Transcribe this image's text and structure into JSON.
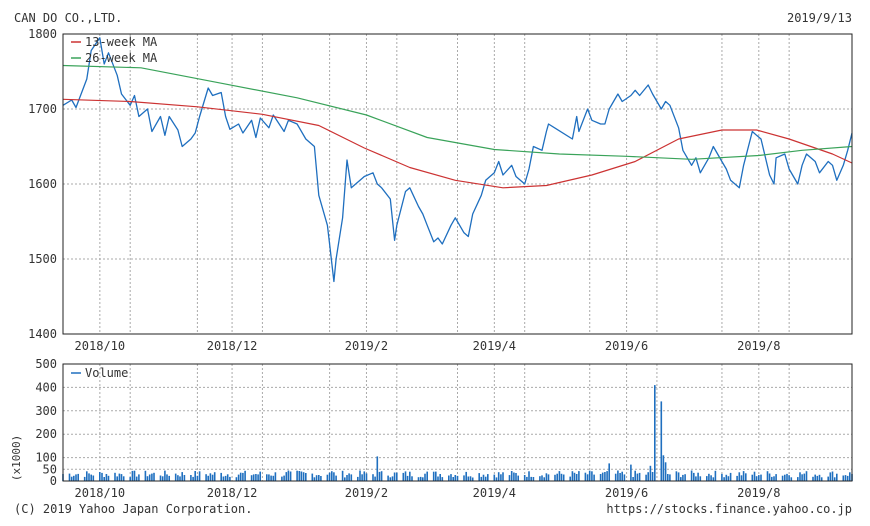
{
  "header": {
    "company": "CAN DO CO.,LTD.",
    "date": "2019/9/13"
  },
  "footer": {
    "copyright": "(C) 2019 Yahoo Japan Corporation.",
    "url": "https://stocks.finance.yahoo.co.jp"
  },
  "colors": {
    "price": "#1f6fbf",
    "ma13": "#cc3333",
    "ma26": "#3aa35a",
    "volume": "#1f6fbf",
    "grid": "#aaaaaa",
    "frame": "#222222"
  },
  "chart_data": [
    {
      "type": "line",
      "x_axis": "date",
      "x_range": [
        "2018-09-14",
        "2019-09-13"
      ],
      "x_tick_labels": [
        {
          "date": "2018-10-01",
          "label": "2018/10"
        },
        {
          "date": "2018-12-01",
          "label": "2018/12"
        },
        {
          "date": "2019-02-01",
          "label": "2019/2"
        },
        {
          "date": "2019-04-01",
          "label": "2019/4"
        },
        {
          "date": "2019-06-01",
          "label": "2019/6"
        },
        {
          "date": "2019-08-01",
          "label": "2019/8"
        }
      ],
      "ylim": [
        1400,
        1800
      ],
      "y_ticks": [
        1400,
        1500,
        1600,
        1700,
        1800
      ],
      "grid": true,
      "legend_position": "top-left",
      "legend": [
        "13-week MA",
        "26-week MA"
      ],
      "series": [
        {
          "key": "price",
          "points": [
            [
              "2018-09-14",
              1705
            ],
            [
              "2018-09-18",
              1712
            ],
            [
              "2018-09-20",
              1702
            ],
            [
              "2018-09-25",
              1740
            ],
            [
              "2018-09-27",
              1778
            ],
            [
              "2018-10-01",
              1795
            ],
            [
              "2018-10-03",
              1760
            ],
            [
              "2018-10-05",
              1775
            ],
            [
              "2018-10-09",
              1745
            ],
            [
              "2018-10-11",
              1720
            ],
            [
              "2018-10-15",
              1705
            ],
            [
              "2018-10-17",
              1718
            ],
            [
              "2018-10-19",
              1690
            ],
            [
              "2018-10-23",
              1700
            ],
            [
              "2018-10-25",
              1670
            ],
            [
              "2018-10-29",
              1690
            ],
            [
              "2018-10-31",
              1665
            ],
            [
              "2018-11-02",
              1690
            ],
            [
              "2018-11-06",
              1672
            ],
            [
              "2018-11-08",
              1650
            ],
            [
              "2018-11-12",
              1660
            ],
            [
              "2018-11-14",
              1668
            ],
            [
              "2018-11-16",
              1690
            ],
            [
              "2018-11-20",
              1728
            ],
            [
              "2018-11-22",
              1718
            ],
            [
              "2018-11-26",
              1722
            ],
            [
              "2018-11-28",
              1690
            ],
            [
              "2018-11-30",
              1673
            ],
            [
              "2018-12-04",
              1680
            ],
            [
              "2018-12-06",
              1668
            ],
            [
              "2018-12-10",
              1685
            ],
            [
              "2018-12-12",
              1662
            ],
            [
              "2018-12-14",
              1688
            ],
            [
              "2018-12-18",
              1675
            ],
            [
              "2018-12-20",
              1692
            ],
            [
              "2018-12-25",
              1670
            ],
            [
              "2018-12-27",
              1685
            ],
            [
              "2018-12-31",
              1680
            ],
            [
              "2019-01-04",
              1660
            ],
            [
              "2019-01-08",
              1650
            ],
            [
              "2019-01-10",
              1585
            ],
            [
              "2019-01-14",
              1545
            ],
            [
              "2019-01-15",
              1520
            ],
            [
              "2019-01-17",
              1470
            ],
            [
              "2019-01-18",
              1500
            ],
            [
              "2019-01-21",
              1555
            ],
            [
              "2019-01-23",
              1632
            ],
            [
              "2019-01-25",
              1595
            ],
            [
              "2019-01-29",
              1605
            ],
            [
              "2019-01-31",
              1610
            ],
            [
              "2019-02-04",
              1615
            ],
            [
              "2019-02-06",
              1600
            ],
            [
              "2019-02-08",
              1595
            ],
            [
              "2019-02-12",
              1580
            ],
            [
              "2019-02-14",
              1525
            ],
            [
              "2019-02-15",
              1545
            ],
            [
              "2019-02-19",
              1590
            ],
            [
              "2019-02-21",
              1595
            ],
            [
              "2019-02-25",
              1570
            ],
            [
              "2019-02-27",
              1560
            ],
            [
              "2019-03-01",
              1545
            ],
            [
              "2019-03-04",
              1523
            ],
            [
              "2019-03-06",
              1528
            ],
            [
              "2019-03-08",
              1520
            ],
            [
              "2019-03-12",
              1545
            ],
            [
              "2019-03-14",
              1555
            ],
            [
              "2019-03-18",
              1535
            ],
            [
              "2019-03-20",
              1530
            ],
            [
              "2019-03-22",
              1560
            ],
            [
              "2019-03-26",
              1585
            ],
            [
              "2019-03-28",
              1605
            ],
            [
              "2019-04-01",
              1615
            ],
            [
              "2019-04-03",
              1630
            ],
            [
              "2019-04-05",
              1612
            ],
            [
              "2019-04-09",
              1625
            ],
            [
              "2019-04-11",
              1610
            ],
            [
              "2019-04-15",
              1600
            ],
            [
              "2019-04-17",
              1620
            ],
            [
              "2019-04-19",
              1650
            ],
            [
              "2019-04-23",
              1645
            ],
            [
              "2019-04-25",
              1670
            ],
            [
              "2019-04-26",
              1680
            ],
            [
              "2019-05-07",
              1660
            ],
            [
              "2019-05-09",
              1690
            ],
            [
              "2019-05-10",
              1670
            ],
            [
              "2019-05-14",
              1700
            ],
            [
              "2019-05-16",
              1685
            ],
            [
              "2019-05-20",
              1680
            ],
            [
              "2019-05-22",
              1680
            ],
            [
              "2019-05-24",
              1700
            ],
            [
              "2019-05-28",
              1720
            ],
            [
              "2019-05-30",
              1710
            ],
            [
              "2019-06-03",
              1718
            ],
            [
              "2019-06-05",
              1725
            ],
            [
              "2019-06-07",
              1718
            ],
            [
              "2019-06-11",
              1732
            ],
            [
              "2019-06-13",
              1720
            ],
            [
              "2019-06-17",
              1700
            ],
            [
              "2019-06-19",
              1710
            ],
            [
              "2019-06-21",
              1705
            ],
            [
              "2019-06-25",
              1675
            ],
            [
              "2019-06-27",
              1645
            ],
            [
              "2019-07-01",
              1625
            ],
            [
              "2019-07-03",
              1635
            ],
            [
              "2019-07-05",
              1615
            ],
            [
              "2019-07-09",
              1635
            ],
            [
              "2019-07-11",
              1650
            ],
            [
              "2019-07-15",
              1630
            ],
            [
              "2019-07-17",
              1620
            ],
            [
              "2019-07-19",
              1605
            ],
            [
              "2019-07-23",
              1595
            ],
            [
              "2019-07-25",
              1625
            ],
            [
              "2019-07-29",
              1670
            ],
            [
              "2019-07-31",
              1665
            ],
            [
              "2019-08-02",
              1660
            ],
            [
              "2019-08-06",
              1612
            ],
            [
              "2019-08-08",
              1600
            ],
            [
              "2019-08-09",
              1635
            ],
            [
              "2019-08-13",
              1640
            ],
            [
              "2019-08-15",
              1620
            ],
            [
              "2019-08-19",
              1600
            ],
            [
              "2019-08-21",
              1625
            ],
            [
              "2019-08-23",
              1640
            ],
            [
              "2019-08-27",
              1630
            ],
            [
              "2019-08-29",
              1615
            ],
            [
              "2019-09-02",
              1630
            ],
            [
              "2019-09-04",
              1625
            ],
            [
              "2019-09-06",
              1605
            ],
            [
              "2019-09-09",
              1625
            ],
            [
              "2019-09-11",
              1645
            ],
            [
              "2019-09-13",
              1668
            ]
          ]
        },
        {
          "key": "ma13",
          "name": "13-week MA",
          "points": [
            [
              "2018-09-14",
              1713
            ],
            [
              "2018-10-15",
              1710
            ],
            [
              "2018-11-15",
              1703
            ],
            [
              "2018-12-15",
              1693
            ],
            [
              "2019-01-10",
              1678
            ],
            [
              "2019-01-31",
              1648
            ],
            [
              "2019-02-21",
              1622
            ],
            [
              "2019-03-14",
              1605
            ],
            [
              "2019-04-05",
              1595
            ],
            [
              "2019-04-25",
              1598
            ],
            [
              "2019-05-16",
              1612
            ],
            [
              "2019-06-05",
              1630
            ],
            [
              "2019-06-25",
              1660
            ],
            [
              "2019-07-15",
              1672
            ],
            [
              "2019-07-31",
              1672
            ],
            [
              "2019-08-15",
              1660
            ],
            [
              "2019-09-04",
              1640
            ],
            [
              "2019-09-13",
              1628
            ]
          ]
        },
        {
          "key": "ma26",
          "name": "26-week MA",
          "points": [
            [
              "2018-09-14",
              1758
            ],
            [
              "2018-10-20",
              1755
            ],
            [
              "2018-11-25",
              1735
            ],
            [
              "2018-12-31",
              1715
            ],
            [
              "2019-02-01",
              1692
            ],
            [
              "2019-03-01",
              1662
            ],
            [
              "2019-04-01",
              1646
            ],
            [
              "2019-05-01",
              1640
            ],
            [
              "2019-06-01",
              1637
            ],
            [
              "2019-07-01",
              1633
            ],
            [
              "2019-08-01",
              1638
            ],
            [
              "2019-08-21",
              1645
            ],
            [
              "2019-09-13",
              1650
            ]
          ]
        }
      ]
    },
    {
      "type": "bar",
      "series_name": "Volume",
      "ylabel": "(x1000)",
      "ylim": [
        0,
        500
      ],
      "y_ticks": [
        0,
        50,
        100,
        200,
        300,
        400,
        500
      ],
      "x_axis": "date",
      "x_range": [
        "2018-09-14",
        "2019-09-13"
      ],
      "x_tick_labels": [
        {
          "date": "2018-10-01",
          "label": "2018/10"
        },
        {
          "date": "2018-12-01",
          "label": "2018/12"
        },
        {
          "date": "2019-02-01",
          "label": "2019/2"
        },
        {
          "date": "2019-04-01",
          "label": "2019/4"
        },
        {
          "date": "2019-06-01",
          "label": "2019/6"
        },
        {
          "date": "2019-08-01",
          "label": "2019/8"
        }
      ],
      "grid": true,
      "legend_position": "top-left",
      "spikes": [
        {
          "date": "2018-12-27",
          "value": 45
        },
        {
          "date": "2019-01-16",
          "value": 42
        },
        {
          "date": "2019-02-06",
          "value": 105
        },
        {
          "date": "2019-03-01",
          "value": 40
        },
        {
          "date": "2019-05-24",
          "value": 75
        },
        {
          "date": "2019-06-03",
          "value": 70
        },
        {
          "date": "2019-06-12",
          "value": 65
        },
        {
          "date": "2019-06-14",
          "value": 410
        },
        {
          "date": "2019-06-17",
          "value": 340
        },
        {
          "date": "2019-06-18",
          "value": 110
        },
        {
          "date": "2019-06-19",
          "value": 80
        }
      ],
      "baseline_range": [
        15,
        45
      ]
    }
  ]
}
